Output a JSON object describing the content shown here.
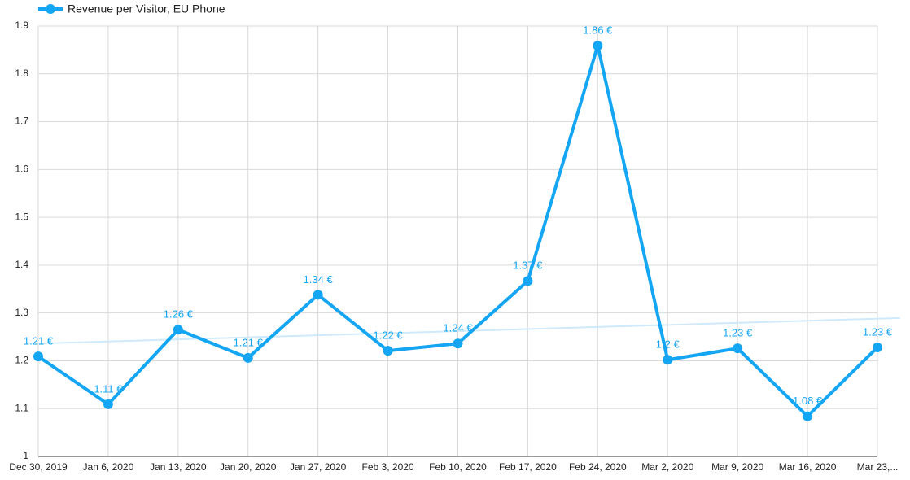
{
  "chart_data": {
    "type": "line",
    "categories": [
      "Dec 30, 2019",
      "Jan 6, 2020",
      "Jan 13, 2020",
      "Jan 20, 2020",
      "Jan 27, 2020",
      "Feb 3, 2020",
      "Feb 10, 2020",
      "Feb 17, 2020",
      "Feb 24, 2020",
      "Mar 2, 2020",
      "Mar 9, 2020",
      "Mar 16, 2020",
      "Mar 23,..."
    ],
    "series": [
      {
        "name": "Revenue per Visitor, EU Phone",
        "color": "#14a6f3",
        "values": [
          1.209,
          1.109,
          1.265,
          1.206,
          1.338,
          1.221,
          1.236,
          1.367,
          1.859,
          1.202,
          1.226,
          1.084,
          1.228
        ],
        "value_labels": [
          "1.21 €",
          "1.11 €",
          "1.26 €",
          "1.21 €",
          "1.34 €",
          "1.22 €",
          "1.24 €",
          "1.37 €",
          "1.86 €",
          "1.2 €",
          "1.23 €",
          "1.08 €",
          "1.23 €"
        ]
      }
    ],
    "trendline": {
      "color": "#cfeafb",
      "values": [
        1.236,
        1.288
      ]
    },
    "ylim": [
      1,
      1.9
    ],
    "yticks": [
      1,
      1.1,
      1.2,
      1.3,
      1.4,
      1.5,
      1.6,
      1.7,
      1.8,
      1.9
    ],
    "grid": true,
    "legend": "top-left"
  }
}
